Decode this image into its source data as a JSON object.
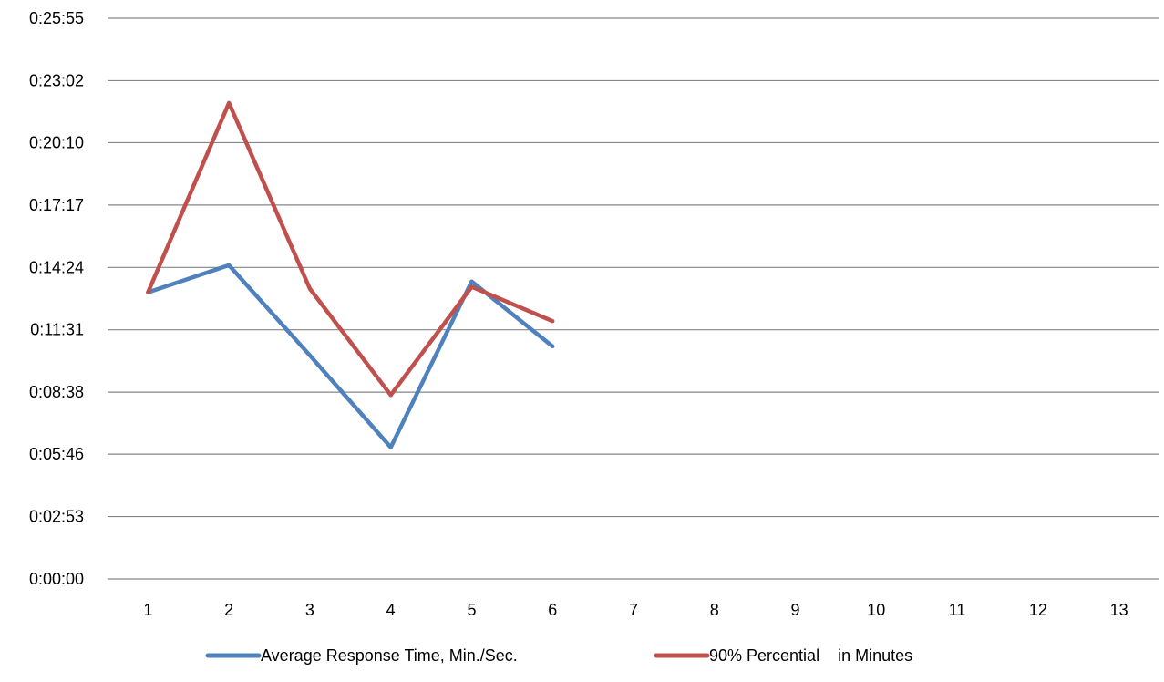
{
  "chart_data": {
    "type": "line",
    "title": "",
    "xlabel": "",
    "ylabel": "",
    "categories": [
      "1",
      "2",
      "3",
      "4",
      "5",
      "6",
      "7",
      "8",
      "9",
      "10",
      "11",
      "12",
      "13"
    ],
    "y_tick_labels": [
      "0:00:00",
      "0:02:53",
      "0:05:46",
      "0:08:38",
      "0:11:31",
      "0:14:24",
      "0:17:17",
      "0:20:10",
      "0:23:02",
      "0:25:55"
    ],
    "y_tick_seconds": [
      0,
      173,
      346,
      518,
      691,
      864,
      1037,
      1210,
      1382,
      1555
    ],
    "ylim_seconds": [
      0,
      1555
    ],
    "y_units": "seconds (displayed as h:mm:ss)",
    "grid": true,
    "legend_position": "bottom",
    "series": [
      {
        "name": "Average Response Time, Min./Sec.",
        "color": "#4f81bd",
        "values_seconds": [
          795,
          870,
          620,
          365,
          825,
          645,
          null,
          null,
          null,
          null,
          null,
          null,
          null
        ]
      },
      {
        "name": "90% Percential    in Minutes",
        "color": "#c0504d",
        "values_seconds": [
          795,
          1320,
          805,
          510,
          810,
          715,
          null,
          null,
          null,
          null,
          null,
          null,
          null
        ]
      }
    ]
  }
}
